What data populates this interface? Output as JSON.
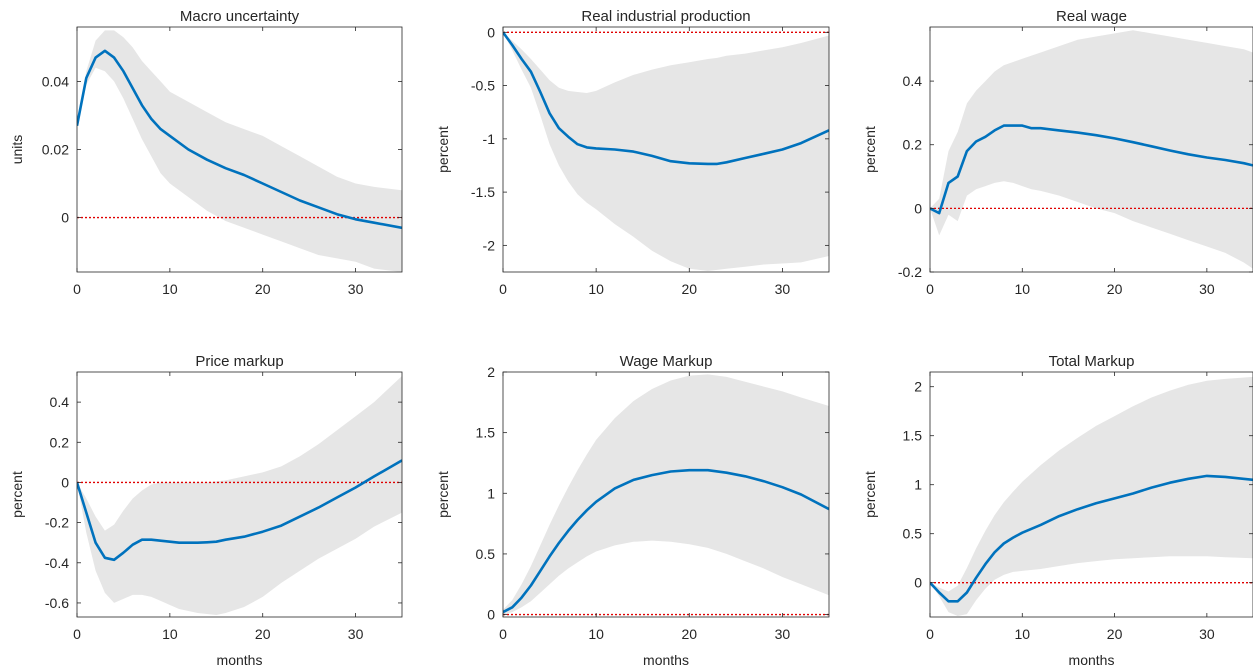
{
  "figure": {
    "panels": [
      {
        "title": "Macro uncertainty",
        "ylabel": "units",
        "xlabel": ""
      },
      {
        "title": "Real industrial production",
        "ylabel": "percent",
        "xlabel": ""
      },
      {
        "title": "Real wage",
        "ylabel": "percent",
        "xlabel": ""
      },
      {
        "title": "Price markup",
        "ylabel": "percent",
        "xlabel": "months"
      },
      {
        "title": "Wage Markup",
        "ylabel": "percent",
        "xlabel": "months"
      },
      {
        "title": "Total Markup",
        "ylabel": "percent",
        "xlabel": "months"
      }
    ]
  },
  "colors": {
    "line": "#0072BD",
    "band": "#e6e6e6",
    "zero": "#e00000",
    "axis": "#262626"
  },
  "chart_data": [
    {
      "type": "line",
      "title": "Macro uncertainty",
      "xlabel": "",
      "ylabel": "units",
      "xlim": [
        0,
        35
      ],
      "ylim": [
        -0.016,
        0.056
      ],
      "xticks": [
        0,
        10,
        20,
        30
      ],
      "yticks": [
        0,
        0.02,
        0.04
      ],
      "ytick_labels": [
        "0",
        "0.02",
        "0.04"
      ],
      "zero_line": 0,
      "x": [
        0,
        1,
        2,
        3,
        4,
        5,
        6,
        7,
        8,
        9,
        10,
        12,
        14,
        16,
        18,
        20,
        22,
        24,
        26,
        28,
        30,
        32,
        35
      ],
      "y": [
        0.027,
        0.041,
        0.047,
        0.049,
        0.047,
        0.043,
        0.038,
        0.033,
        0.029,
        0.026,
        0.024,
        0.02,
        0.017,
        0.0145,
        0.0125,
        0.01,
        0.0075,
        0.005,
        0.003,
        0.001,
        -0.0005,
        -0.0015,
        -0.003
      ],
      "band_upper": [
        0.027,
        0.043,
        0.052,
        0.055,
        0.055,
        0.053,
        0.05,
        0.046,
        0.043,
        0.04,
        0.037,
        0.034,
        0.031,
        0.028,
        0.026,
        0.024,
        0.021,
        0.018,
        0.015,
        0.012,
        0.01,
        0.009,
        0.008
      ],
      "band_lower": [
        0.027,
        0.039,
        0.044,
        0.043,
        0.04,
        0.035,
        0.029,
        0.023,
        0.018,
        0.013,
        0.01,
        0.006,
        0.002,
        -0.001,
        -0.003,
        -0.005,
        -0.007,
        -0.009,
        -0.011,
        -0.012,
        -0.013,
        -0.015,
        -0.016
      ]
    },
    {
      "type": "line",
      "title": "Real industrial production",
      "xlabel": "",
      "ylabel": "percent",
      "xlim": [
        0,
        35
      ],
      "ylim": [
        -2.25,
        0.05
      ],
      "xticks": [
        0,
        10,
        20,
        30
      ],
      "yticks": [
        0,
        -0.5,
        -1,
        -1.5,
        -2
      ],
      "ytick_labels": [
        "0",
        "-0.5",
        "-1",
        "-1.5",
        "-2"
      ],
      "zero_line": 0,
      "x": [
        0,
        1,
        2,
        3,
        4,
        5,
        6,
        7,
        8,
        9,
        10,
        12,
        14,
        16,
        18,
        20,
        22,
        23,
        24,
        26,
        28,
        30,
        32,
        35
      ],
      "y": [
        0,
        -0.12,
        -0.25,
        -0.37,
        -0.56,
        -0.76,
        -0.9,
        -0.98,
        -1.05,
        -1.08,
        -1.09,
        -1.1,
        -1.12,
        -1.16,
        -1.21,
        -1.23,
        -1.235,
        -1.235,
        -1.22,
        -1.18,
        -1.14,
        -1.1,
        -1.04,
        -0.92
      ],
      "band_upper": [
        0,
        -0.08,
        -0.16,
        -0.25,
        -0.35,
        -0.45,
        -0.52,
        -0.55,
        -0.56,
        -0.57,
        -0.55,
        -0.47,
        -0.4,
        -0.35,
        -0.31,
        -0.28,
        -0.25,
        -0.24,
        -0.22,
        -0.2,
        -0.17,
        -0.14,
        -0.1,
        -0.03
      ],
      "band_lower": [
        0,
        -0.17,
        -0.35,
        -0.52,
        -0.78,
        -1.05,
        -1.25,
        -1.4,
        -1.52,
        -1.6,
        -1.66,
        -1.8,
        -1.92,
        -2.05,
        -2.15,
        -2.22,
        -2.24,
        -2.23,
        -2.22,
        -2.2,
        -2.18,
        -2.17,
        -2.16,
        -2.1
      ]
    },
    {
      "type": "line",
      "title": "Real wage",
      "xlabel": "",
      "ylabel": "percent",
      "xlim": [
        0,
        35
      ],
      "ylim": [
        -0.2,
        0.57
      ],
      "xticks": [
        0,
        10,
        20,
        30
      ],
      "yticks": [
        -0.2,
        0,
        0.2,
        0.4
      ],
      "ytick_labels": [
        "-0.2",
        "0",
        "0.2",
        "0.4"
      ],
      "zero_line": 0,
      "x": [
        0,
        1,
        2,
        3,
        4,
        5,
        6,
        7,
        8,
        9,
        10,
        11,
        12,
        14,
        16,
        18,
        20,
        22,
        24,
        26,
        28,
        30,
        32,
        34,
        35
      ],
      "y": [
        0,
        -0.015,
        0.08,
        0.1,
        0.18,
        0.21,
        0.225,
        0.245,
        0.26,
        0.26,
        0.26,
        0.252,
        0.252,
        0.245,
        0.238,
        0.23,
        0.22,
        0.208,
        0.195,
        0.182,
        0.17,
        0.16,
        0.152,
        0.142,
        0.135
      ],
      "band_upper": [
        0,
        0.03,
        0.18,
        0.24,
        0.33,
        0.37,
        0.4,
        0.43,
        0.45,
        0.46,
        0.47,
        0.48,
        0.49,
        0.51,
        0.53,
        0.54,
        0.55,
        0.56,
        0.55,
        0.54,
        0.53,
        0.52,
        0.51,
        0.5,
        0.49
      ],
      "band_lower": [
        0,
        -0.085,
        -0.02,
        -0.04,
        0.04,
        0.06,
        0.07,
        0.08,
        0.085,
        0.08,
        0.07,
        0.06,
        0.055,
        0.04,
        0.02,
        0.0,
        -0.015,
        -0.04,
        -0.06,
        -0.08,
        -0.1,
        -0.12,
        -0.14,
        -0.17,
        -0.19
      ]
    },
    {
      "type": "line",
      "title": "Price markup",
      "xlabel": "months",
      "ylabel": "percent",
      "xlim": [
        0,
        35
      ],
      "ylim": [
        -0.67,
        0.55
      ],
      "xticks": [
        0,
        10,
        20,
        30
      ],
      "yticks": [
        0.4,
        0.2,
        0,
        -0.2,
        -0.4,
        -0.6
      ],
      "ytick_labels": [
        "0.4",
        "0.2",
        "0",
        "-0.2",
        "-0.4",
        "-0.6"
      ],
      "zero_line": 0,
      "x": [
        0,
        1,
        2,
        3,
        4,
        5,
        6,
        7,
        8,
        9,
        10,
        11,
        12,
        13,
        14,
        15,
        16,
        18,
        20,
        22,
        24,
        26,
        28,
        30,
        32,
        35
      ],
      "y": [
        0,
        -0.15,
        -0.3,
        -0.375,
        -0.385,
        -0.35,
        -0.31,
        -0.285,
        -0.285,
        -0.29,
        -0.295,
        -0.3,
        -0.3,
        -0.3,
        -0.298,
        -0.295,
        -0.285,
        -0.27,
        -0.245,
        -0.215,
        -0.17,
        -0.125,
        -0.075,
        -0.025,
        0.03,
        0.11
      ],
      "band_upper": [
        0,
        -0.08,
        -0.17,
        -0.24,
        -0.21,
        -0.14,
        -0.08,
        -0.04,
        -0.01,
        0.0,
        0.0,
        0.0,
        0.0,
        0.0,
        0.0,
        0.005,
        0.01,
        0.03,
        0.05,
        0.08,
        0.13,
        0.19,
        0.26,
        0.33,
        0.4,
        0.53
      ],
      "band_lower": [
        0,
        -0.25,
        -0.44,
        -0.55,
        -0.6,
        -0.58,
        -0.56,
        -0.56,
        -0.57,
        -0.59,
        -0.61,
        -0.63,
        -0.64,
        -0.65,
        -0.655,
        -0.66,
        -0.65,
        -0.62,
        -0.57,
        -0.5,
        -0.44,
        -0.38,
        -0.33,
        -0.28,
        -0.22,
        -0.15
      ]
    },
    {
      "type": "line",
      "title": "Wage Markup",
      "xlabel": "months",
      "ylabel": "percent",
      "xlim": [
        0,
        35
      ],
      "ylim": [
        -0.02,
        2.0
      ],
      "xticks": [
        0,
        10,
        20,
        30
      ],
      "yticks": [
        0,
        0.5,
        1,
        1.5,
        2
      ],
      "ytick_labels": [
        "0",
        "0.5",
        "1",
        "1.5",
        "2"
      ],
      "zero_line": 0,
      "x": [
        0,
        1,
        2,
        3,
        4,
        5,
        6,
        7,
        8,
        9,
        10,
        12,
        14,
        16,
        18,
        20,
        22,
        24,
        26,
        28,
        30,
        32,
        35
      ],
      "y": [
        0.02,
        0.06,
        0.14,
        0.24,
        0.36,
        0.48,
        0.59,
        0.69,
        0.78,
        0.86,
        0.93,
        1.04,
        1.11,
        1.15,
        1.18,
        1.19,
        1.19,
        1.17,
        1.14,
        1.1,
        1.05,
        0.99,
        0.87
      ],
      "band_upper": [
        0.04,
        0.12,
        0.25,
        0.4,
        0.57,
        0.74,
        0.9,
        1.05,
        1.19,
        1.32,
        1.44,
        1.62,
        1.76,
        1.86,
        1.93,
        1.97,
        1.98,
        1.96,
        1.92,
        1.88,
        1.84,
        1.79,
        1.72
      ],
      "band_lower": [
        0.0,
        0.02,
        0.06,
        0.11,
        0.18,
        0.25,
        0.32,
        0.38,
        0.43,
        0.48,
        0.52,
        0.57,
        0.6,
        0.61,
        0.6,
        0.58,
        0.55,
        0.5,
        0.44,
        0.38,
        0.31,
        0.25,
        0.16
      ]
    },
    {
      "type": "line",
      "title": "Total Markup",
      "xlabel": "months",
      "ylabel": "percent",
      "xlim": [
        0,
        35
      ],
      "ylim": [
        -0.35,
        2.15
      ],
      "xticks": [
        0,
        10,
        20,
        30
      ],
      "yticks": [
        0,
        0.5,
        1,
        1.5,
        2
      ],
      "ytick_labels": [
        "0",
        "0.5",
        "1",
        "1.5",
        "2"
      ],
      "zero_line": 0,
      "x": [
        0,
        1,
        2,
        3,
        4,
        5,
        6,
        7,
        8,
        9,
        10,
        12,
        14,
        16,
        18,
        20,
        22,
        24,
        26,
        28,
        30,
        32,
        35
      ],
      "y": [
        0,
        -0.1,
        -0.19,
        -0.19,
        -0.1,
        0.05,
        0.19,
        0.31,
        0.4,
        0.46,
        0.51,
        0.59,
        0.68,
        0.75,
        0.81,
        0.86,
        0.91,
        0.97,
        1.02,
        1.06,
        1.09,
        1.08,
        1.05
      ],
      "band_upper": [
        0,
        -0.05,
        -0.09,
        -0.03,
        0.15,
        0.35,
        0.53,
        0.69,
        0.82,
        0.93,
        1.03,
        1.2,
        1.35,
        1.48,
        1.6,
        1.7,
        1.8,
        1.89,
        1.96,
        2.02,
        2.06,
        2.08,
        2.1
      ],
      "band_lower": [
        0,
        -0.14,
        -0.3,
        -0.34,
        -0.32,
        -0.18,
        -0.06,
        0.03,
        0.08,
        0.11,
        0.12,
        0.14,
        0.17,
        0.2,
        0.22,
        0.24,
        0.25,
        0.26,
        0.27,
        0.27,
        0.27,
        0.26,
        0.25
      ]
    }
  ]
}
